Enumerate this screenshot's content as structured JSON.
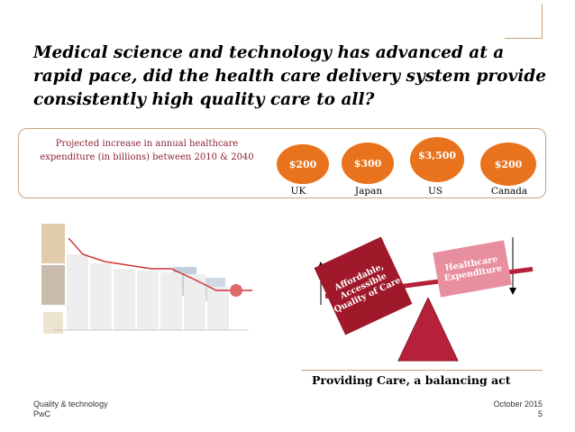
{
  "slide": {
    "title": "Medical science and technology has advanced at a rapid pace, did the health care delivery system provide consistently high quality care to all?",
    "projection": {
      "label": "Projected increase in annual healthcare expenditure  (in billions) between 2010 & 2040",
      "items": [
        {
          "value": "$200",
          "country": "UK"
        },
        {
          "value": "$300",
          "country": "Japan"
        },
        {
          "value": "$3,500",
          "country": "US"
        },
        {
          "value": "$200",
          "country": "Canada"
        }
      ]
    },
    "balance": {
      "left_label": "Affordable, Accessible Quality of Care",
      "right_label": "Healthcare Expenditure",
      "caption": "Providing Care, a balancing act"
    },
    "footer": {
      "left_line1": "Quality & technology",
      "left_line2": "PwC",
      "right_line1": "October 2015",
      "right_line2": "5"
    }
  },
  "colors": {
    "orange": "#e8731c",
    "dark_red": "#a0192b",
    "pink": "#e88f9f",
    "gold_rule": "#c9a27a",
    "label_red": "#8b2231"
  },
  "icons": [
    "up-arrow-icon",
    "down-arrow-icon",
    "fulcrum-triangle-icon"
  ]
}
